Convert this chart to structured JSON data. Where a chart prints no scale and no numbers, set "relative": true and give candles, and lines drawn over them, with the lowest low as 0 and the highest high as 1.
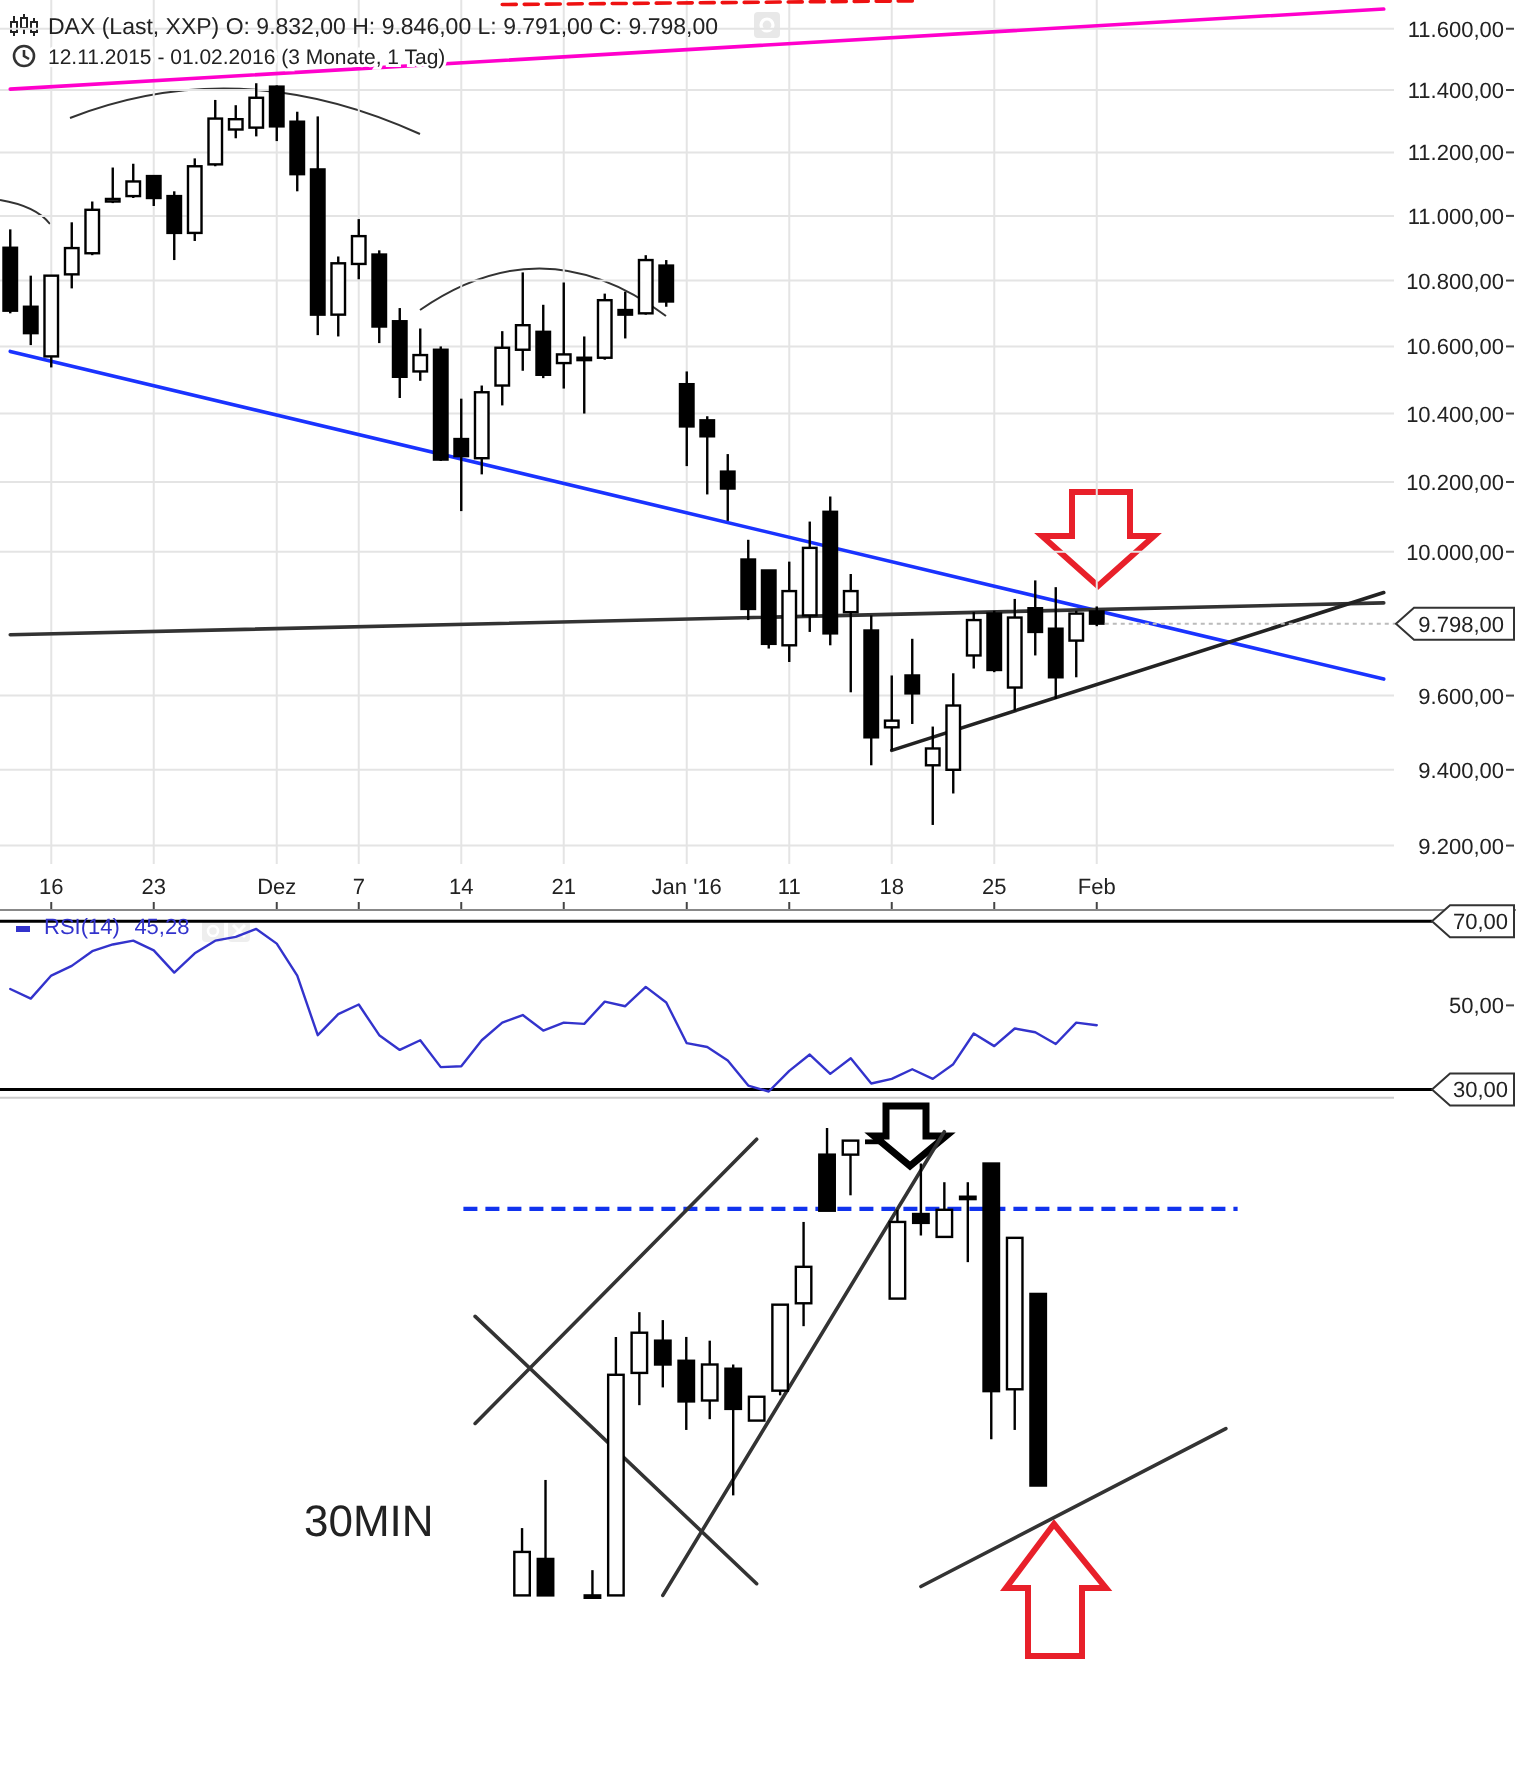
{
  "chart_data": [
    {
      "type": "candlestick",
      "title": "DAX (Last, XXP)  O: 9.832,00  H: 9.846,00  L: 9.791,00  C: 9.798,00",
      "subtitle": "12.11.2015 - 01.02.2016 (3 Monate, 1 Tag)",
      "log": true,
      "grid": true,
      "categories": [
        null,
        null,
        "16",
        null,
        null,
        null,
        null,
        "23",
        null,
        null,
        null,
        null,
        null,
        "Dez",
        null,
        null,
        null,
        "7",
        null,
        null,
        null,
        null,
        "14",
        null,
        null,
        null,
        null,
        "21",
        null,
        null,
        null,
        null,
        null,
        "Jan '16",
        null,
        null,
        null,
        null,
        "11",
        null,
        null,
        null,
        null,
        "18",
        null,
        null,
        null,
        null,
        "25",
        null,
        null,
        null,
        null,
        "Feb",
        null,
        null,
        null,
        null,
        null,
        null,
        null,
        null,
        null,
        null,
        null,
        null,
        null,
        null
      ],
      "ohlc": [
        [
          10901,
          10958,
          10700,
          10708
        ],
        [
          10720,
          10815,
          10604,
          10640
        ],
        [
          10570,
          10815,
          10537,
          10815
        ],
        [
          10819,
          10980,
          10776,
          10900
        ],
        [
          10884,
          11045,
          10878,
          11019
        ],
        [
          11045,
          11152,
          11040,
          11053
        ],
        [
          11062,
          11164,
          11056,
          11108
        ],
        [
          11125,
          11125,
          11031,
          11056
        ],
        [
          11062,
          11077,
          10863,
          10947
        ],
        [
          10947,
          11181,
          10922,
          11156
        ],
        [
          11162,
          11368,
          11156,
          11308
        ],
        [
          11273,
          11351,
          11245,
          11306
        ],
        [
          11279,
          11422,
          11251,
          11375
        ],
        [
          11411,
          11415,
          11236,
          11283
        ],
        [
          11298,
          11330,
          11077,
          11131
        ],
        [
          11146,
          11315,
          10634,
          10696
        ],
        [
          10696,
          10874,
          10630,
          10853
        ],
        [
          10851,
          10990,
          10804,
          10937
        ],
        [
          10880,
          10893,
          10610,
          10660
        ],
        [
          10676,
          10716,
          10446,
          10509
        ],
        [
          10525,
          10654,
          10497,
          10574
        ],
        [
          10590,
          10600,
          10261,
          10265
        ],
        [
          10325,
          10444,
          10116,
          10275
        ],
        [
          10269,
          10483,
          10222,
          10463
        ],
        [
          10483,
          10646,
          10424,
          10596
        ],
        [
          10590,
          10825,
          10527,
          10664
        ],
        [
          10644,
          10726,
          10505,
          10515
        ],
        [
          10550,
          10794,
          10474,
          10576
        ],
        [
          10566,
          10630,
          10400,
          10562
        ],
        [
          10566,
          10760,
          10560,
          10740
        ],
        [
          10710,
          10766,
          10624,
          10696
        ],
        [
          10700,
          10878,
          10696,
          10863
        ],
        [
          10846,
          10863,
          10720,
          10736
        ],
        [
          10487,
          10525,
          10246,
          10362
        ],
        [
          10380,
          10392,
          10164,
          10333
        ],
        [
          10230,
          10281,
          10088,
          10181
        ],
        [
          9978,
          10034,
          9808,
          9839
        ],
        [
          9947,
          9947,
          9729,
          9742
        ],
        [
          9738,
          9972,
          9692,
          9889
        ],
        [
          9821,
          10086,
          9775,
          10011
        ],
        [
          10114,
          10158,
          9738,
          9771
        ],
        [
          9830,
          9937,
          9609,
          9889
        ],
        [
          9779,
          9821,
          9412,
          9487
        ],
        [
          9514,
          9655,
          9452,
          9532
        ],
        [
          9655,
          9756,
          9523,
          9606
        ],
        [
          9412,
          9516,
          9254,
          9457
        ],
        [
          9400,
          9661,
          9337,
          9573
        ],
        [
          9710,
          9830,
          9674,
          9808
        ],
        [
          9826,
          9834,
          9664,
          9670
        ],
        [
          9622,
          9867,
          9559,
          9815
        ],
        [
          9841,
          9919,
          9710,
          9775
        ],
        [
          9784,
          9900,
          9591,
          9650
        ],
        [
          9751,
          9834,
          9650,
          9826
        ],
        [
          9832,
          9846,
          9791,
          9798
        ],
        null,
        null,
        null,
        null,
        null,
        null,
        null,
        null,
        null,
        null,
        null,
        null,
        null,
        null
      ],
      "series": [
        {
          "type": "line",
          "color": "#ff00cc",
          "values": [
            11403,
            null,
            null,
            null,
            null,
            null,
            null,
            null,
            null,
            null,
            null,
            null,
            null,
            null,
            null,
            null,
            null,
            null,
            null,
            null,
            null,
            null,
            null,
            null,
            null,
            null,
            null,
            null,
            null,
            null,
            null,
            null,
            null,
            null,
            null,
            null,
            null,
            null,
            null,
            null,
            null,
            null,
            null,
            null,
            null,
            null,
            null,
            null,
            null,
            null,
            null,
            null,
            null,
            null,
            null,
            null,
            null,
            null,
            null,
            null,
            null,
            null,
            null,
            null,
            null,
            null,
            null,
            11665
          ]
        },
        {
          "type": "line",
          "color": "#1a33ff",
          "values": [
            10585,
            null,
            null,
            null,
            null,
            null,
            null,
            null,
            null,
            null,
            null,
            null,
            null,
            null,
            null,
            null,
            null,
            null,
            null,
            null,
            null,
            null,
            null,
            null,
            null,
            null,
            null,
            null,
            null,
            null,
            null,
            null,
            null,
            null,
            null,
            null,
            null,
            null,
            null,
            null,
            null,
            null,
            null,
            null,
            null,
            null,
            null,
            null,
            null,
            null,
            null,
            null,
            null,
            null,
            null,
            null,
            null,
            null,
            null,
            null,
            null,
            null,
            null,
            null,
            null,
            null,
            null,
            9645
          ]
        },
        {
          "type": "line",
          "color": "#333333",
          "values": [
            9767,
            null,
            null,
            null,
            null,
            null,
            null,
            null,
            null,
            null,
            null,
            null,
            null,
            null,
            null,
            null,
            null,
            null,
            null,
            null,
            null,
            null,
            null,
            null,
            null,
            null,
            null,
            null,
            null,
            null,
            null,
            null,
            null,
            null,
            null,
            null,
            null,
            null,
            null,
            null,
            null,
            null,
            null,
            null,
            null,
            null,
            null,
            null,
            null,
            null,
            null,
            null,
            null,
            null,
            null,
            null,
            null,
            null,
            null,
            null,
            null,
            null,
            null,
            null,
            null,
            null,
            null,
            9856
          ]
        },
        {
          "type": "line",
          "color": "#222222",
          "values": [
            null,
            null,
            null,
            null,
            null,
            null,
            null,
            null,
            null,
            null,
            null,
            null,
            null,
            null,
            null,
            null,
            null,
            null,
            null,
            null,
            null,
            null,
            null,
            null,
            null,
            null,
            null,
            null,
            null,
            null,
            null,
            null,
            null,
            null,
            null,
            null,
            null,
            null,
            null,
            null,
            null,
            null,
            null,
            9452,
            null,
            null,
            null,
            null,
            null,
            null,
            null,
            null,
            null,
            null,
            null,
            null,
            null,
            null,
            null,
            null,
            null,
            null,
            null,
            null,
            null,
            null,
            null,
            9885
          ]
        },
        {
          "type": "line",
          "color": "#ee1111",
          "line_style": "dashed",
          "values": [
            null,
            null,
            null,
            null,
            null,
            null,
            null,
            null,
            null,
            null,
            null,
            null,
            null,
            null,
            null,
            null,
            null,
            null,
            null,
            null,
            null,
            null,
            null,
            null,
            11680,
            null,
            null,
            null,
            null,
            null,
            null,
            null,
            null,
            null,
            null,
            null,
            null,
            null,
            null,
            null,
            null,
            null,
            null,
            null,
            11692,
            null,
            null,
            null,
            null,
            null,
            null,
            null,
            null,
            null,
            null,
            null,
            null,
            null,
            null,
            null,
            null,
            null,
            null,
            null,
            null,
            null,
            null,
            null
          ]
        }
      ],
      "ylim": [
        9152,
        11695
      ],
      "yticks": [
        {
          "value": 9200,
          "label": "9.200,00"
        },
        {
          "value": 9400,
          "label": "9.400,00"
        },
        {
          "value": 9600,
          "label": "9.600,00"
        },
        {
          "value": 10000,
          "label": "10.000,00"
        },
        {
          "value": 10200,
          "label": "10.200,00"
        },
        {
          "value": 10400,
          "label": "10.400,00"
        },
        {
          "value": 10600,
          "label": "10.600,00"
        },
        {
          "value": 10800,
          "label": "10.800,00"
        },
        {
          "value": 11000,
          "label": "11.000,00"
        },
        {
          "value": 11200,
          "label": "11.200,00"
        },
        {
          "value": 11400,
          "label": "11.400,00"
        },
        {
          "value": 11600,
          "label": "11.600,00"
        }
      ],
      "annotations": [
        {
          "text": "9.798,00",
          "x": "Feb",
          "y": 9798
        }
      ]
    },
    {
      "type": "line",
      "tick_labels": "y",
      "legend": "top left",
      "categories": [
        null,
        null,
        null,
        null,
        null,
        null,
        null,
        null,
        null,
        null,
        null,
        null,
        null,
        null,
        null,
        null,
        null,
        null,
        null,
        null,
        null,
        null,
        null,
        null,
        null,
        null,
        null,
        null,
        null,
        null,
        null,
        null,
        null,
        null,
        null,
        null,
        null,
        null,
        null,
        null,
        null,
        null,
        null,
        null,
        null,
        null,
        null,
        null,
        null,
        null,
        null,
        null,
        null,
        null,
        null,
        null,
        null,
        null,
        null,
        null,
        null,
        null,
        null,
        null,
        null,
        null,
        null,
        null
      ],
      "series": [
        {
          "name": "RSI(14)",
          "color": "#3333cc",
          "values": [
            53.9,
            51.6,
            57.1,
            59.4,
            62.9,
            64.5,
            65.4,
            63.1,
            57.8,
            62.4,
            65.4,
            66.3,
            68.2,
            64.7,
            57.1,
            42.9,
            47.9,
            50.2,
            42.9,
            39.4,
            41.7,
            35.3,
            35.5,
            41.7,
            45.9,
            47.7,
            44.0,
            45.9,
            45.6,
            50.9,
            49.8,
            54.4,
            50.7,
            41.0,
            40.1,
            36.9,
            30.9,
            29.5,
            34.4,
            38.3,
            33.7,
            37.4,
            31.4,
            32.5,
            34.8,
            32.5,
            36.0,
            43.3,
            40.3,
            44.5,
            43.6,
            40.8,
            45.9,
            45.28,
            null,
            null,
            null,
            null,
            null,
            null,
            null,
            null,
            null,
            null,
            null,
            null,
            null,
            null
          ]
        }
      ],
      "ylim": [
        28,
        72.7
      ],
      "yticks": [
        {
          "value": 30,
          "label": "30,00"
        },
        {
          "value": 50,
          "label": "50,00"
        },
        {
          "value": 70,
          "label": "70,00"
        }
      ],
      "ref_lines": [
        {
          "axis": "y",
          "value": 70,
          "line_style": "solid"
        },
        {
          "axis": "y",
          "value": 30,
          "line_style": "solid"
        }
      ],
      "annotations": [
        "45,28"
      ]
    },
    {
      "type": "candlestick",
      "title": "30MIN",
      "relative": true,
      "tick_labels": false,
      "categories": [
        null,
        null,
        null,
        null,
        null,
        null,
        null,
        null,
        null,
        null,
        null,
        null,
        null,
        null,
        null,
        null,
        null,
        null,
        null,
        null,
        null,
        null,
        null,
        null,
        null,
        null,
        null,
        null,
        null,
        null,
        null,
        null,
        null
      ],
      "ohlc": [
        null,
        null,
        [
          0,
          0.144,
          0,
          0.093
        ],
        [
          0.078,
          0.247,
          0,
          0
        ],
        null,
        [
          0,
          0.054,
          0,
          0
        ],
        [
          0,
          0.553,
          0,
          0.472
        ],
        [
          0.476,
          0.606,
          0.407,
          0.562
        ],
        [
          0.545,
          0.589,
          0.445,
          0.494
        ],
        [
          0.502,
          0.553,
          0.354,
          0.415
        ],
        [
          0.417,
          0.545,
          0.377,
          0.494
        ],
        [
          0.485,
          0.494,
          0.214,
          0.399
        ],
        [
          0.374,
          0.425,
          0.374,
          0.425
        ],
        [
          0.438,
          0.622,
          0.428,
          0.622
        ],
        [
          0.625,
          0.799,
          0.576,
          0.703
        ],
        [
          0.943,
          1,
          0.823,
          0.823
        ],
        [
          0.943,
          0.973,
          0.856,
          0.973
        ],
        [
          0.973,
          0.973,
          0.973,
          0.973
        ],
        [
          0.635,
          0.825,
          0.635,
          0.799
        ],
        [
          0.816,
          0.924,
          0.77,
          0.797
        ],
        [
          0.767,
          0.884,
          0.767,
          0.825
        ],
        [
          0.853,
          0.884,
          0.713,
          0.853
        ],
        [
          0.924,
          0.924,
          0.334,
          0.437
        ],
        [
          0.441,
          0.765,
          0.354,
          0.765
        ],
        [
          0.645,
          0.645,
          0.235,
          0.235
        ],
        null,
        null,
        null,
        null,
        null,
        null,
        null,
        null
      ],
      "series": [
        {
          "type": "line",
          "color": "#333333",
          "values": [
            0.368,
            null,
            null,
            null,
            null,
            null,
            null,
            null,
            null,
            null,
            null,
            null,
            0.976,
            null,
            null,
            null,
            null,
            null,
            null,
            null,
            null,
            null,
            null,
            null,
            null,
            null,
            null,
            null,
            null,
            null,
            null,
            null,
            null
          ]
        },
        {
          "type": "line",
          "color": "#333333",
          "values": [
            0.597,
            null,
            null,
            null,
            null,
            null,
            null,
            null,
            null,
            null,
            null,
            null,
            0.025,
            null,
            null,
            null,
            null,
            null,
            null,
            null,
            null,
            null,
            null,
            null,
            null,
            null,
            null,
            null,
            null,
            null,
            null,
            null,
            null
          ]
        },
        {
          "type": "line",
          "color": "#333333",
          "values": [
            null,
            null,
            null,
            null,
            null,
            null,
            null,
            null,
            0,
            null,
            null,
            null,
            null,
            null,
            null,
            null,
            null,
            null,
            null,
            null,
            0.992,
            null,
            null,
            null,
            null,
            null,
            null,
            null,
            null,
            null,
            null,
            null,
            null
          ]
        },
        {
          "type": "line",
          "color": "#333333",
          "values": [
            null,
            null,
            null,
            null,
            null,
            null,
            null,
            null,
            null,
            null,
            null,
            null,
            null,
            null,
            null,
            null,
            null,
            null,
            null,
            0.019,
            null,
            null,
            null,
            null,
            null,
            null,
            null,
            null,
            null,
            null,
            null,
            null,
            0.357
          ]
        }
      ],
      "ref_lines": [
        {
          "axis": "y",
          "value": 0.827,
          "color": "#1133ee",
          "line_style": "dashed"
        }
      ]
    }
  ]
}
